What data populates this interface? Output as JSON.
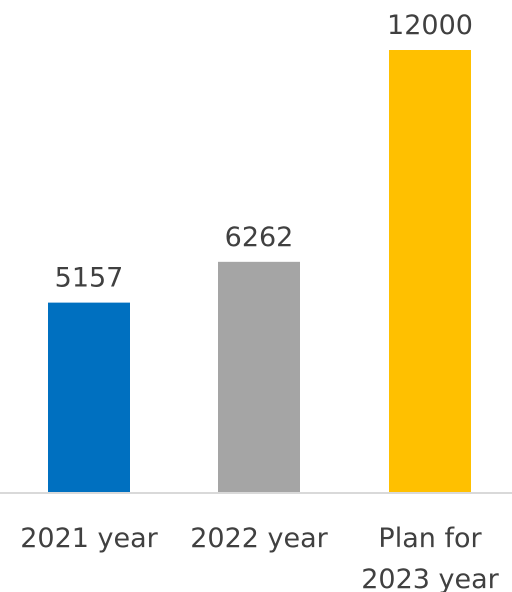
{
  "chart_data": {
    "type": "bar",
    "categories": [
      [
        "2021 year"
      ],
      [
        "2022 year"
      ],
      [
        "Plan for",
        "2023 year"
      ]
    ],
    "values": [
      5157,
      6262,
      12000
    ],
    "value_labels": [
      "5157",
      "6262",
      "12000"
    ],
    "colors": [
      "#0070C0",
      "#A5A5A5",
      "#FFC000"
    ],
    "axis_color": "#D9D9D9",
    "grid": false,
    "legend": "none",
    "ylim": [
      0,
      12000
    ]
  }
}
